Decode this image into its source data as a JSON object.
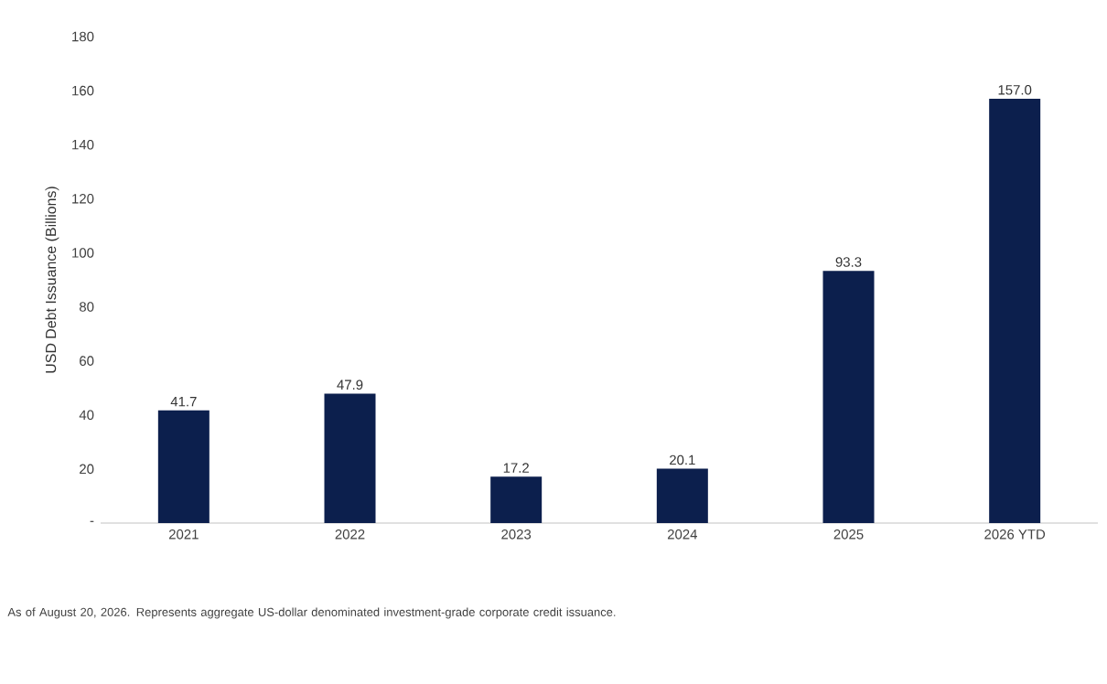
{
  "chart_data": {
    "type": "bar",
    "ylabel": "USD Debt Issuance (Billions)",
    "categories": [
      "2021",
      "2022",
      "2023",
      "2024",
      "2025",
      "2026 YTD"
    ],
    "values": [
      41.7,
      47.9,
      17.2,
      20.1,
      93.3,
      157.0
    ],
    "value_labels": [
      "41.7",
      "47.9",
      "17.2",
      "20.1",
      "93.3",
      "157.0"
    ],
    "color": "#0c1f4d",
    "ylim": [
      0,
      180
    ],
    "yticks": [
      {
        "value": 0,
        "label": "-"
      },
      20,
      40,
      60,
      80,
      100,
      120,
      140,
      160,
      180
    ],
    "annotations": [
      "As of August 20, 2026. Represents aggregate US-dollar denominated investment-grade corporate credit issuance."
    ]
  }
}
